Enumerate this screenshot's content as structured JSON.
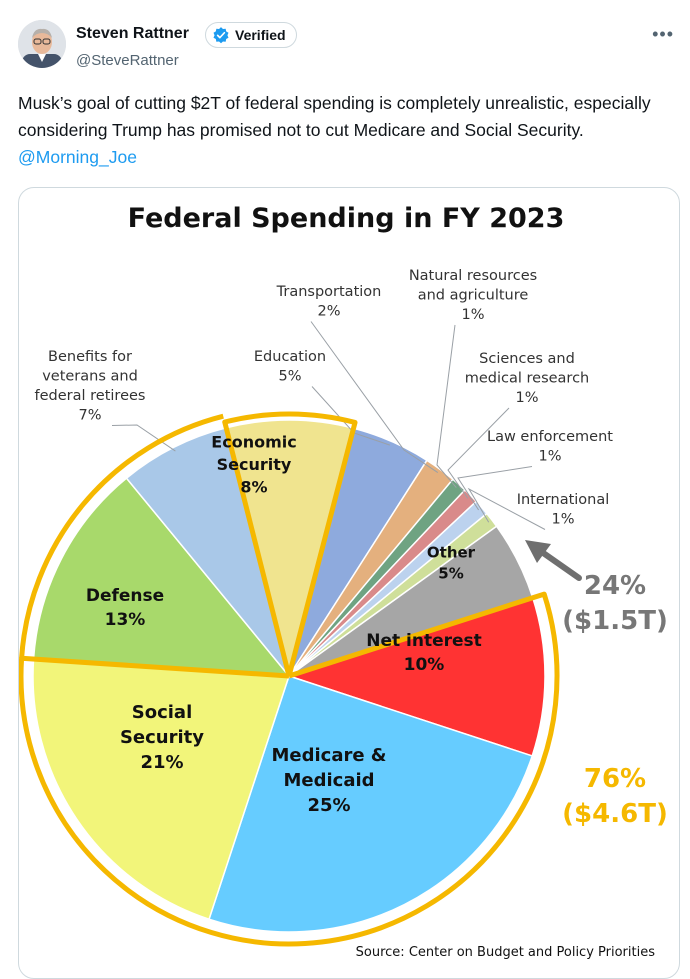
{
  "tweet": {
    "author_name": "Steven Rattner",
    "verified_label": "Verified",
    "handle": "@SteveRattner",
    "more_label": "•••",
    "text": "Musk’s goal of cutting $2T of federal spending is completely unrealistic, especially considering Trump has promised not to cut Medicare and Social Security.",
    "mention": "@Morning_Joe"
  },
  "chart_data": {
    "type": "pie",
    "title": "Federal Spending in FY 2023",
    "source": "Source: Center on Budget and Policy Priorities",
    "slices": [
      {
        "name": "Net interest",
        "lines": [
          "Net interest",
          "10%"
        ],
        "percent": 10,
        "color": "#ff3333"
      },
      {
        "name": "Medicare & Medicaid",
        "lines": [
          "Medicare &",
          "Medicaid",
          "25%"
        ],
        "percent": 25,
        "color": "#66ccff"
      },
      {
        "name": "Social Security",
        "lines": [
          "Social",
          "Security",
          "21%"
        ],
        "percent": 21,
        "color": "#f2f57a"
      },
      {
        "name": "Defense",
        "lines": [
          "Defense",
          "13%"
        ],
        "percent": 13,
        "color": "#a8d96b"
      },
      {
        "name": "Benefits for veterans and federal retirees",
        "lines": [
          "Benefits for",
          "veterans and",
          "federal retirees",
          "7%"
        ],
        "percent": 7,
        "color": "#a9c8e8"
      },
      {
        "name": "Economic Security",
        "lines": [
          "Economic",
          "Security",
          "8%"
        ],
        "percent": 8,
        "color": "#f0e48f"
      },
      {
        "name": "Education",
        "lines": [
          "Education",
          "5%"
        ],
        "percent": 5,
        "color": "#8eaadd"
      },
      {
        "name": "Transportation",
        "lines": [
          "Transportation",
          "2%"
        ],
        "percent": 2,
        "color": "#e4b07e"
      },
      {
        "name": "Natural resources and agriculture",
        "lines": [
          "Natural resources",
          "and agriculture",
          "1%"
        ],
        "percent": 1,
        "color": "#6fa382"
      },
      {
        "name": "Sciences and medical research",
        "lines": [
          "Sciences and",
          "medical research",
          "1%"
        ],
        "percent": 1,
        "color": "#d98a8a"
      },
      {
        "name": "Law enforcement",
        "lines": [
          "Law enforcement",
          "1%"
        ],
        "percent": 1,
        "color": "#bcd2ee"
      },
      {
        "name": "International",
        "lines": [
          "International",
          "1%"
        ],
        "percent": 1,
        "color": "#cfdf9a"
      },
      {
        "name": "Other",
        "lines": [
          "Other",
          "5%"
        ],
        "percent": 5,
        "color": "#a6a6a6"
      }
    ],
    "group_annotations": [
      {
        "percent_label": "24%",
        "amount_label": "($1.5T)",
        "color": "#777777"
      },
      {
        "percent_label": "76%",
        "amount_label": "($4.6T)",
        "color": "#f5b800"
      }
    ]
  },
  "colors": {
    "accent": "#1d9bf0",
    "highlight": "#f5b800",
    "text": "#0f1419",
    "muted": "#536471"
  }
}
